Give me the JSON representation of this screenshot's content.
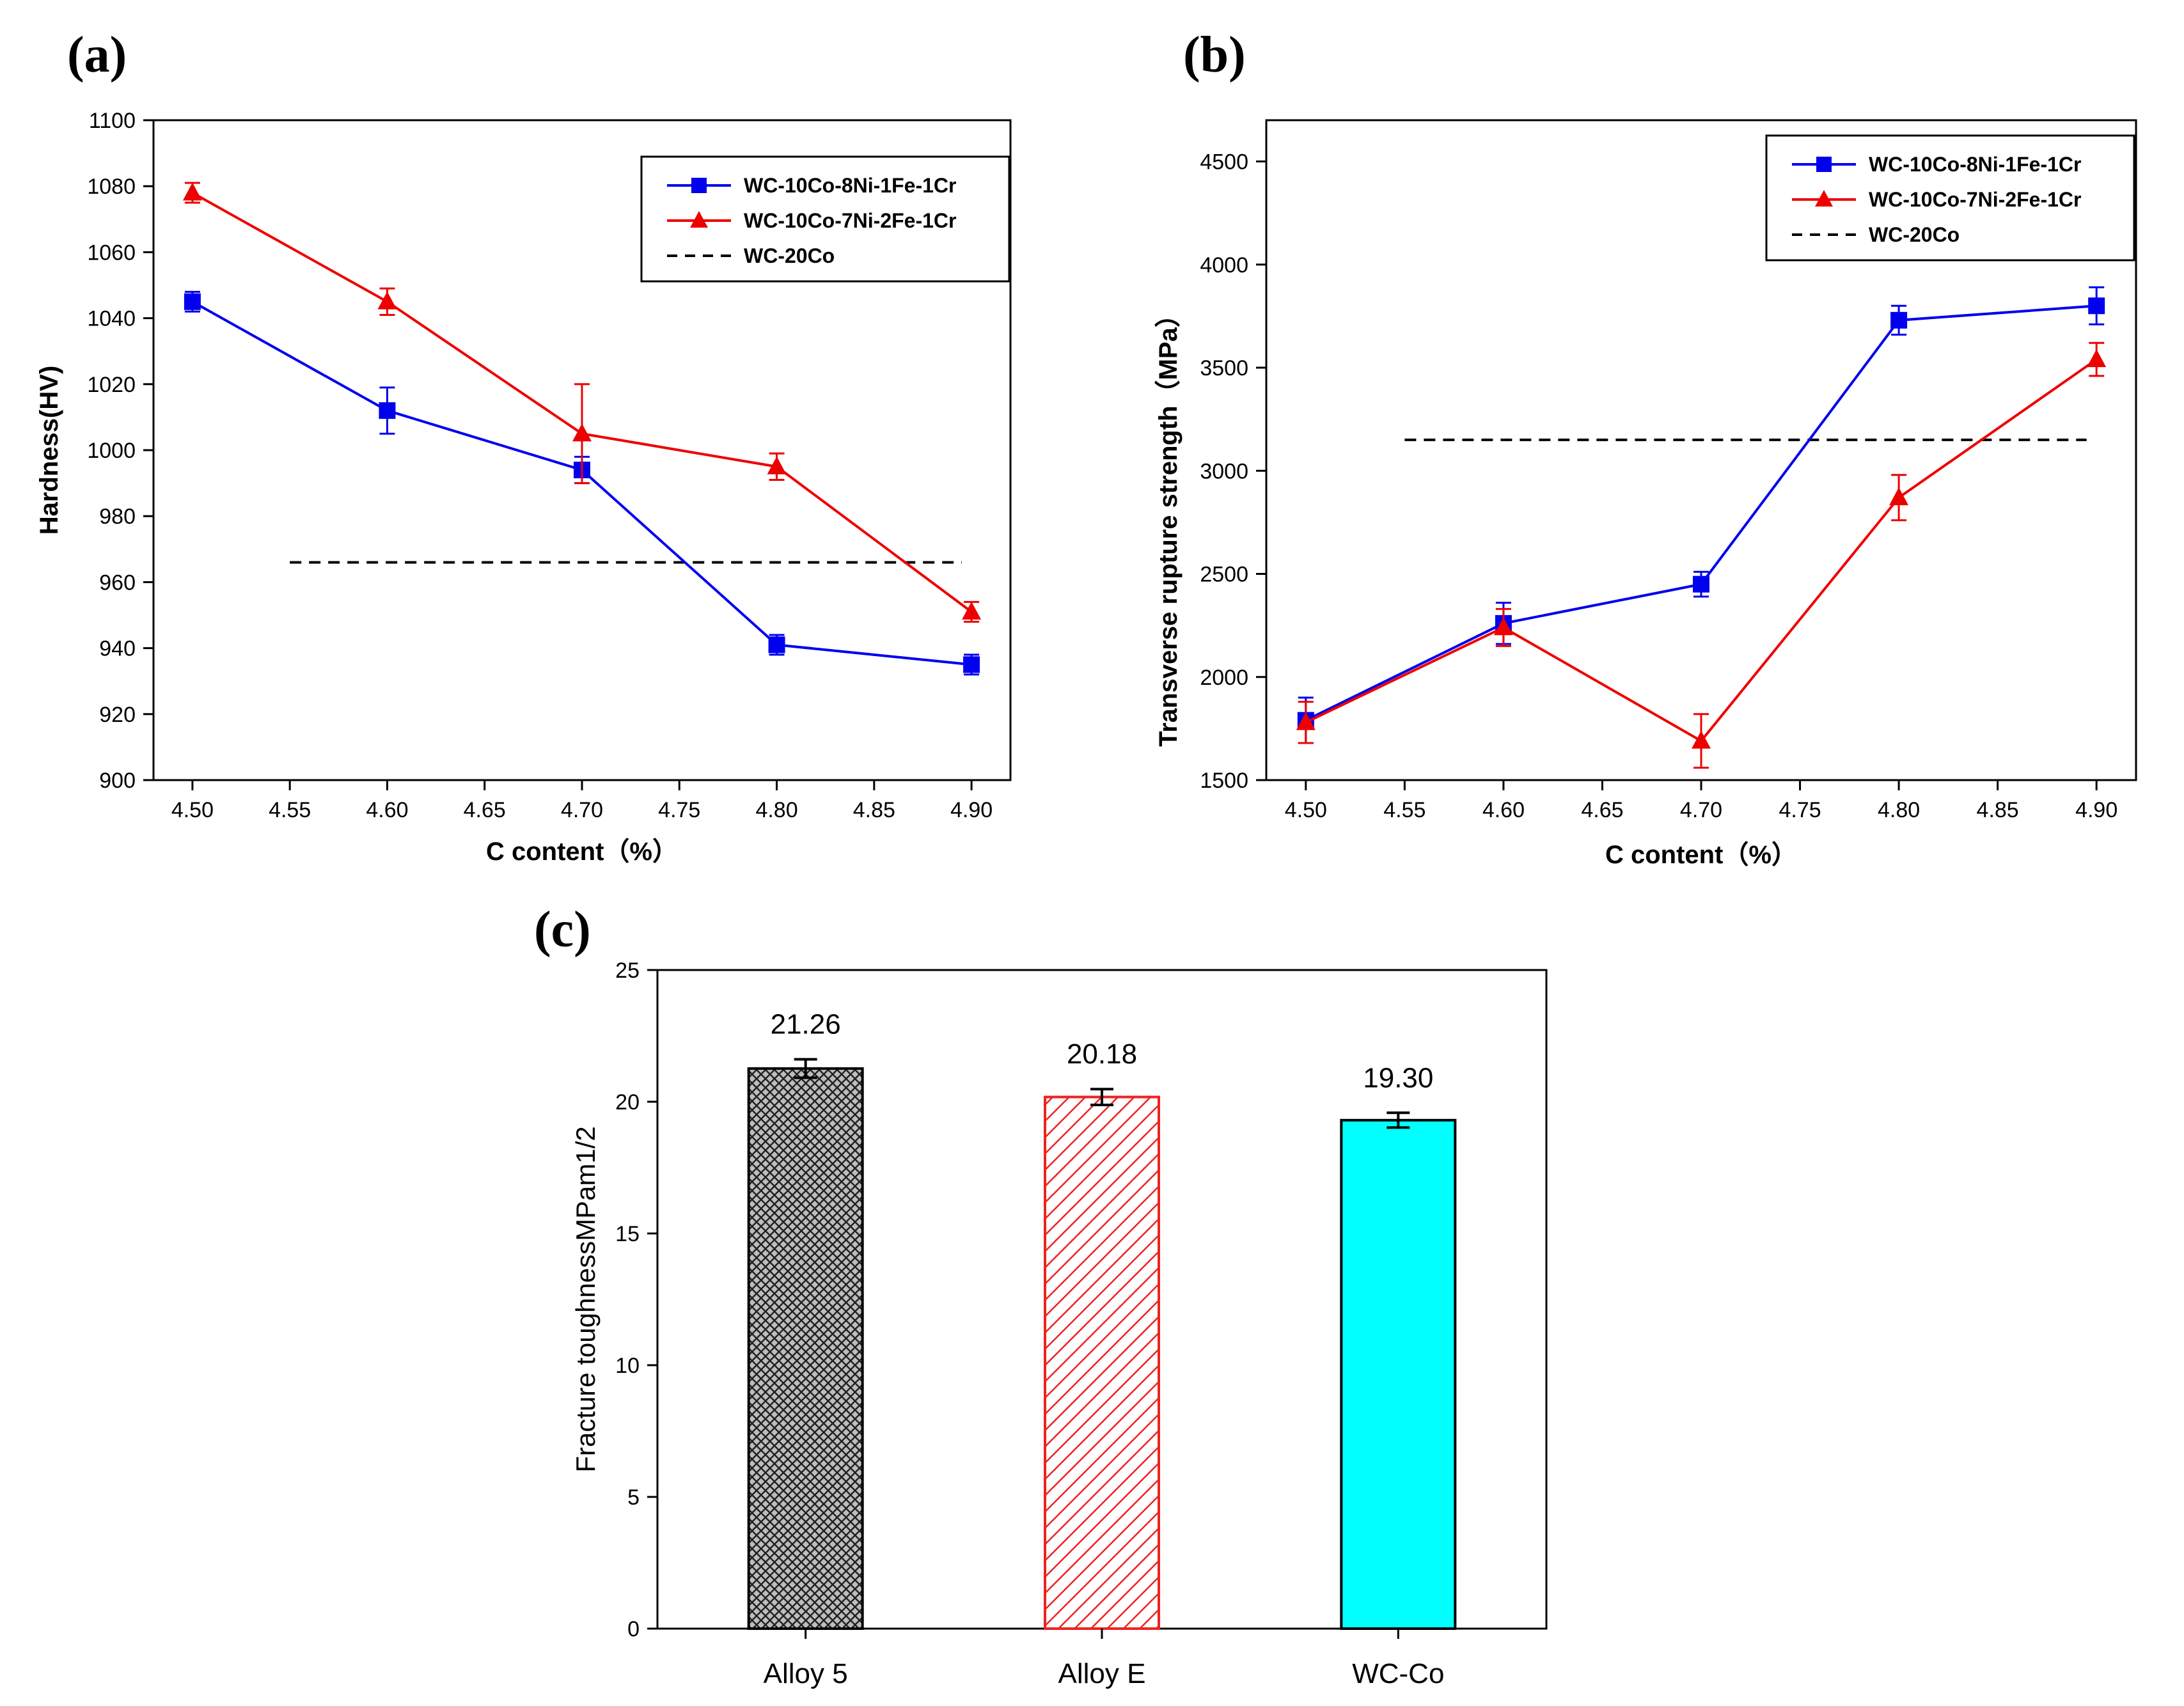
{
  "chart_data": [
    {
      "panel": "(a)",
      "type": "line",
      "xlabel": "C content（%）",
      "ylabel": "Hardness(HV)",
      "xlim": [
        4.48,
        4.92
      ],
      "ylim": [
        900,
        1100
      ],
      "xticks": [
        "4.50",
        "4.55",
        "4.60",
        "4.65",
        "4.70",
        "4.75",
        "4.80",
        "4.85",
        "4.90"
      ],
      "yticks": [
        "900",
        "920",
        "940",
        "960",
        "980",
        "1000",
        "1020",
        "1040",
        "1060",
        "1080",
        "1100"
      ],
      "series": [
        {
          "name": "WC-10Co-8Ni-1Fe-1Cr",
          "color": "#0000ee",
          "marker": "square",
          "x": [
            4.5,
            4.6,
            4.7,
            4.8,
            4.9
          ],
          "y": [
            1045,
            1012,
            994,
            941,
            935
          ],
          "err": [
            3,
            7,
            4,
            3,
            3
          ]
        },
        {
          "name": "WC-10Co-7Ni-2Fe-1Cr",
          "color": "#ee0000",
          "marker": "triangle",
          "x": [
            4.5,
            4.6,
            4.7,
            4.8,
            4.9
          ],
          "y": [
            1078,
            1045,
            1005,
            995,
            951
          ],
          "err": [
            3,
            4,
            15,
            4,
            3
          ]
        }
      ],
      "reference": {
        "name": "WC-20Co",
        "y": 966,
        "x_range": [
          4.55,
          4.895
        ],
        "color": "#000000"
      }
    },
    {
      "panel": "(b)",
      "type": "line",
      "xlabel": "C content（%）",
      "ylabel": "Transverse rupture strength（MPa）",
      "xlim": [
        4.48,
        4.92
      ],
      "ylim": [
        1500,
        4700
      ],
      "xticks": [
        "4.50",
        "4.55",
        "4.60",
        "4.65",
        "4.70",
        "4.75",
        "4.80",
        "4.85",
        "4.90"
      ],
      "yticks": [
        "1500",
        "2000",
        "2500",
        "3000",
        "3500",
        "4000",
        "4500"
      ],
      "series": [
        {
          "name": "WC-10Co-8Ni-1Fe-1Cr",
          "color": "#0000ee",
          "marker": "square",
          "x": [
            4.5,
            4.6,
            4.7,
            4.8,
            4.9
          ],
          "y": [
            1790,
            2260,
            2450,
            3730,
            3800
          ],
          "err": [
            110,
            100,
            60,
            70,
            90
          ]
        },
        {
          "name": "WC-10Co-7Ni-2Fe-1Cr",
          "color": "#ee0000",
          "marker": "triangle",
          "x": [
            4.5,
            4.6,
            4.7,
            4.8,
            4.9
          ],
          "y": [
            1780,
            2240,
            1690,
            2870,
            3540
          ],
          "err": [
            100,
            90,
            130,
            110,
            80
          ]
        }
      ],
      "reference": {
        "name": "WC-20Co",
        "y": 3150,
        "x_range": [
          4.55,
          4.895
        ],
        "color": "#000000"
      }
    },
    {
      "panel": "(c)",
      "type": "bar",
      "ylabel": "Fracture toughnessMPam1/2",
      "ylim": [
        0,
        25
      ],
      "yticks": [
        "0",
        "5",
        "10",
        "15",
        "20",
        "25"
      ],
      "categories": [
        "Alloy 5",
        "Alloy E",
        "WC-Co"
      ],
      "values": [
        21.26,
        20.18,
        19.3
      ],
      "value_labels": [
        "21.26",
        "20.18",
        "19.30"
      ],
      "err": [
        0.35,
        0.3,
        0.28
      ],
      "fills": [
        "crosshatch-gray",
        "diagonal-red",
        "solid-cyan"
      ],
      "colors": {
        "alloy5": "#333333",
        "alloyE": "#ee2222",
        "wcco": "#00ffff"
      }
    }
  ]
}
